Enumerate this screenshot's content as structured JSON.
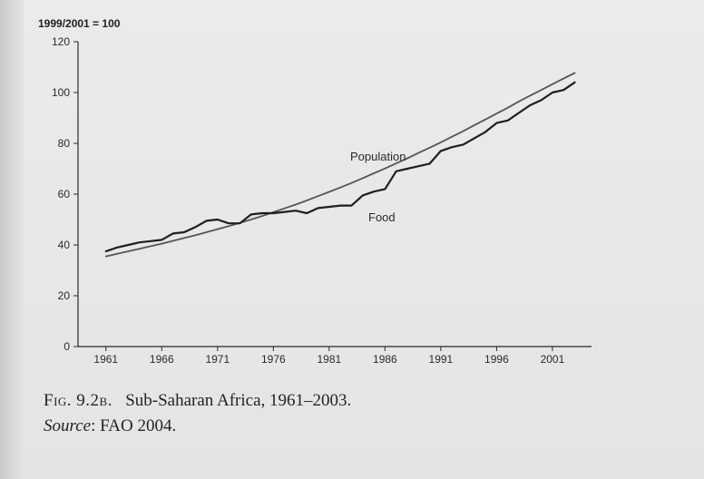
{
  "chart_data": {
    "type": "line",
    "ylabel": "1999/2001 = 100",
    "ylim": [
      0,
      120
    ],
    "yticks": [
      0,
      20,
      40,
      60,
      80,
      100,
      120
    ],
    "xlim": [
      1958.5,
      2004.5
    ],
    "xticks": [
      1961,
      1966,
      1971,
      1976,
      1981,
      1986,
      1991,
      1996,
      2001
    ],
    "grid": false,
    "series": [
      {
        "name": "Population",
        "color": "#555555",
        "x": [
          1961,
          1962,
          1963,
          1964,
          1965,
          1966,
          1967,
          1968,
          1969,
          1970,
          1971,
          1972,
          1973,
          1974,
          1975,
          1976,
          1977,
          1978,
          1979,
          1980,
          1981,
          1982,
          1983,
          1984,
          1985,
          1986,
          1987,
          1988,
          1989,
          1990,
          1991,
          1992,
          1993,
          1994,
          1995,
          1996,
          1997,
          1998,
          1999,
          2000,
          2001,
          2002,
          2003
        ],
        "values": [
          35.5,
          36.5,
          37.5,
          38.5,
          39.5,
          40.5,
          41.6,
          42.7,
          43.8,
          45.0,
          46.2,
          47.4,
          48.7,
          50.0,
          51.4,
          52.9,
          54.4,
          55.9,
          57.5,
          59.2,
          60.9,
          62.6,
          64.4,
          66.3,
          68.2,
          70.1,
          72.1,
          74.1,
          76.2,
          78.3,
          80.4,
          82.6,
          84.8,
          87.1,
          89.4,
          91.7,
          94.0,
          96.5,
          98.8,
          101.0,
          103.3,
          105.5,
          107.7
        ]
      },
      {
        "name": "Food",
        "color": "#1e1e1e",
        "x": [
          1961,
          1962,
          1963,
          1964,
          1965,
          1966,
          1967,
          1968,
          1969,
          1970,
          1971,
          1972,
          1973,
          1974,
          1975,
          1976,
          1977,
          1978,
          1979,
          1980,
          1981,
          1982,
          1983,
          1984,
          1985,
          1986,
          1987,
          1988,
          1989,
          1990,
          1991,
          1992,
          1993,
          1994,
          1995,
          1996,
          1997,
          1998,
          1999,
          2000,
          2001,
          2002,
          2003
        ],
        "values": [
          37.5,
          39,
          40,
          41,
          41.5,
          42,
          44.5,
          45,
          47,
          49.5,
          50,
          48.5,
          48.5,
          52,
          52.5,
          52.5,
          53,
          53.5,
          52.5,
          54.5,
          55,
          55.5,
          55.5,
          59.5,
          61,
          62,
          69,
          70,
          71,
          72,
          77,
          78.5,
          79.5,
          82,
          84.5,
          88,
          89,
          92,
          95,
          97,
          100,
          101,
          104
        ]
      }
    ]
  },
  "labels": {
    "population": "Population",
    "food": "Food"
  },
  "caption": {
    "figure_number": "Fig. 9.2b.",
    "title": "Sub-Saharan Africa, 1961–2003.",
    "source_label": "Source",
    "source_text": ": FAO 2004."
  }
}
